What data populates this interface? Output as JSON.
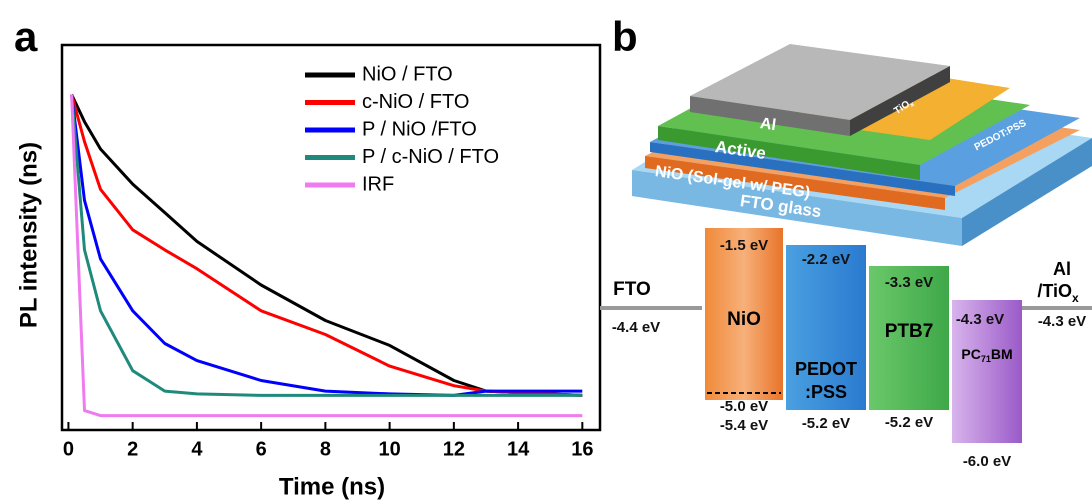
{
  "chart_data": {
    "type": "line",
    "panel_label": "a",
    "xlabel": "Time (ns)",
    "ylabel": "PL intensity (ns)",
    "x": [
      0.1,
      0.5,
      1,
      2,
      3,
      4,
      6,
      8,
      10,
      12,
      13,
      16
    ],
    "series": [
      {
        "name": "NiO / FTO",
        "color": "#000000",
        "values": [
          1,
          0.8,
          0.64,
          0.48,
          0.38,
          0.3,
          0.21,
          0.157,
          0.128,
          0.096,
          0.088,
          0.085
        ]
      },
      {
        "name": "c-NiO / FTO",
        "color": "#ff0000",
        "values": [
          1,
          0.68,
          0.46,
          0.33,
          0.28,
          0.24,
          0.17,
          0.14,
          0.108,
          0.092,
          0.088,
          0.085
        ]
      },
      {
        "name": "P / NiO /FTO",
        "color": "#0000ff",
        "values": [
          1,
          0.42,
          0.26,
          0.17,
          0.13,
          0.113,
          0.096,
          0.088,
          0.086,
          0.085,
          0.088,
          0.088
        ]
      },
      {
        "name": "P / c-NiO / FTO",
        "color": "#1f8a7c",
        "values": [
          1,
          0.28,
          0.17,
          0.104,
          0.088,
          0.086,
          0.085,
          0.085,
          0.085,
          0.085,
          0.085,
          0.085
        ]
      },
      {
        "name": "IRF",
        "color": "#f07af0",
        "values": [
          1,
          0.075,
          0.072,
          0.072,
          0.072,
          0.072,
          0.072,
          0.072,
          0.072,
          0.072,
          0.072,
          0.072
        ]
      }
    ],
    "xlim": [
      -0.2,
      16.55
    ],
    "xticks": [
      0,
      2,
      4,
      6,
      8,
      10,
      12,
      14,
      16
    ],
    "ylim": [
      0.064,
      1.5
    ],
    "log_y": true,
    "legend": "upper right"
  },
  "diagram": {
    "panel_label": "b",
    "stack": [
      {
        "parts": [
          "FTO glass"
        ]
      },
      {
        "parts": [
          "NiO (Sol-gel w/ PEG)"
        ]
      },
      {
        "parts": [
          "PEDOT:PSS"
        ]
      },
      {
        "parts": [
          "Active"
        ]
      },
      {
        "parts": [
          "TiO",
          "x"
        ]
      },
      {
        "parts": [
          "Al"
        ]
      }
    ],
    "levels": {
      "fto": {
        "name": "FTO",
        "level": "-4.4 eV"
      },
      "nio": {
        "name": "NiO",
        "top": "-1.5 eV",
        "mid": "-5.0 eV",
        "bottom": "-5.4 eV"
      },
      "pedot": {
        "name1": "PEDOT",
        "name2": ":PSS",
        "top": "-2.2 eV",
        "bottom": "-5.2 eV"
      },
      "ptb7": {
        "name": "PTB7",
        "top": "-3.3 eV",
        "bottom": "-5.2 eV"
      },
      "pcbm": {
        "parts": [
          "PC",
          "71",
          "BM"
        ],
        "top": "-4.3 eV",
        "bottom": "-6.0 eV"
      },
      "al": {
        "name1": "Al",
        "parts2": [
          "/TiO",
          "x"
        ],
        "level": "-4.3 eV"
      }
    }
  }
}
